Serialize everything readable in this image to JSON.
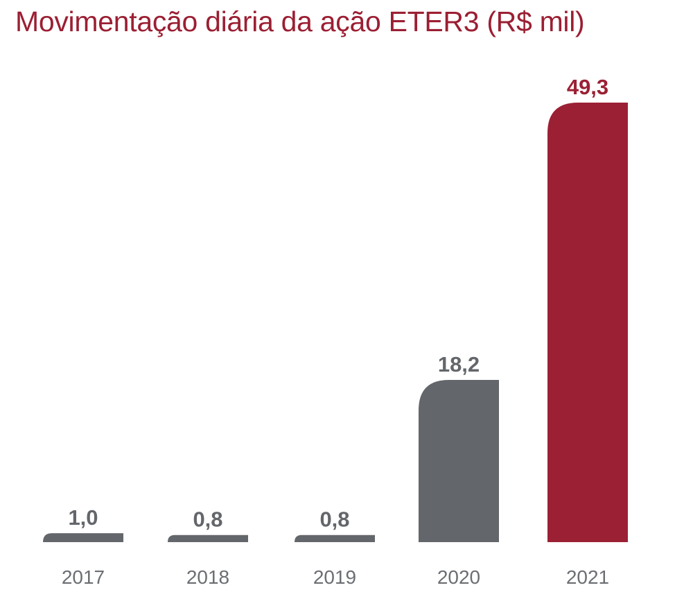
{
  "chart_data": {
    "type": "bar",
    "title": "Movimentação diária da ação ETER3 (R$ mil)",
    "xlabel": "",
    "ylabel": "",
    "categories": [
      "2017",
      "2018",
      "2019",
      "2020",
      "2021"
    ],
    "values": [
      1.0,
      0.8,
      0.8,
      18.2,
      49.3
    ],
    "value_labels": [
      "1,0",
      "0,8",
      "0,8",
      "18,2",
      "49,3"
    ],
    "highlight_index": 4,
    "ylim": [
      0,
      49.3
    ],
    "grid": false,
    "legend": "none"
  },
  "colors": {
    "title": "#9b1f33",
    "bar_default": "#63666a",
    "bar_highlight": "#9b2034",
    "label_default": "#63666a",
    "label_highlight": "#9b2034",
    "tick": "#6b6e72"
  }
}
